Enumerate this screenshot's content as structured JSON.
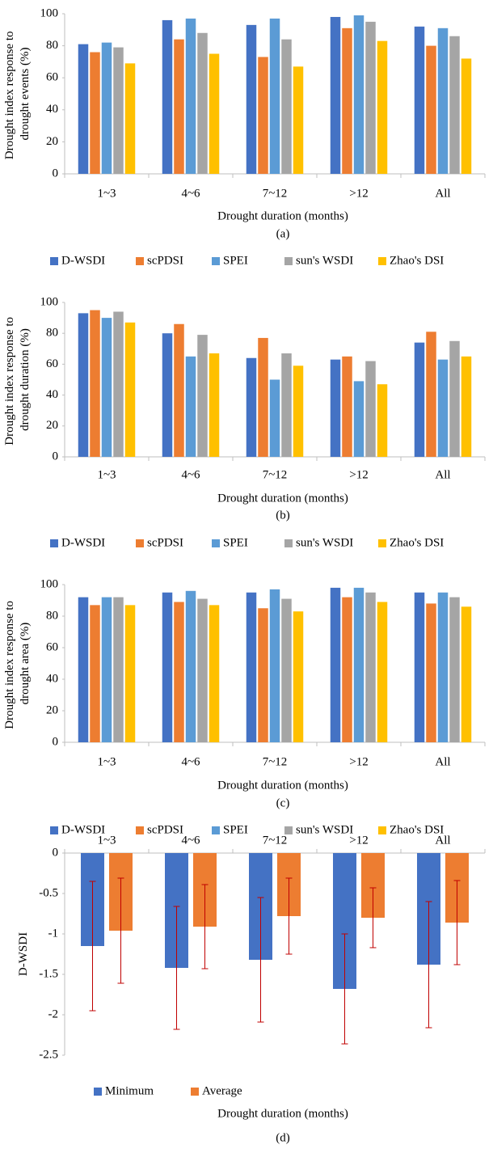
{
  "chart_data": [
    {
      "type": "bar",
      "ylabel": "Drought index response to drought events (%)",
      "xlabel": "Drought duration (months)",
      "caption": "(a)",
      "categories": [
        "1~3",
        "4~6",
        "7~12",
        ">12",
        "All"
      ],
      "series": [
        {
          "name": "D-WSDI",
          "color": "#4472c4",
          "values": [
            81,
            96,
            93,
            98,
            92
          ]
        },
        {
          "name": "scPDSI",
          "color": "#ed7d31",
          "values": [
            76,
            84,
            73,
            91,
            80
          ]
        },
        {
          "name": "SPEI",
          "color": "#5b9bd5",
          "values": [
            82,
            97,
            97,
            99,
            91
          ]
        },
        {
          "name": "sun's WSDI",
          "color": "#a5a5a5",
          "values": [
            79,
            88,
            84,
            95,
            86
          ]
        },
        {
          "name": "Zhao's DSI",
          "color": "#ffc000",
          "values": [
            69,
            75,
            67,
            83,
            72
          ]
        }
      ],
      "ylim": [
        0,
        100
      ],
      "yticks": [
        0,
        20,
        40,
        60,
        80,
        100
      ],
      "grid": false,
      "legend": "bottom"
    },
    {
      "type": "bar",
      "ylabel": "Drought index response to drought duration (%)",
      "xlabel": "Drought duration (months)",
      "caption": "(b)",
      "categories": [
        "1~3",
        "4~6",
        "7~12",
        ">12",
        "All"
      ],
      "series": [
        {
          "name": "D-WSDI",
          "color": "#4472c4",
          "values": [
            93,
            80,
            64,
            63,
            74
          ]
        },
        {
          "name": "scPDSI",
          "color": "#ed7d31",
          "values": [
            95,
            86,
            77,
            65,
            81
          ]
        },
        {
          "name": "SPEI",
          "color": "#5b9bd5",
          "values": [
            90,
            65,
            50,
            49,
            63
          ]
        },
        {
          "name": "sun's WSDI",
          "color": "#a5a5a5",
          "values": [
            94,
            79,
            67,
            62,
            75
          ]
        },
        {
          "name": "Zhao's DSI",
          "color": "#ffc000",
          "values": [
            87,
            67,
            59,
            47,
            65
          ]
        }
      ],
      "ylim": [
        0,
        100
      ],
      "yticks": [
        0,
        20,
        40,
        60,
        80,
        100
      ],
      "grid": false,
      "legend": "bottom"
    },
    {
      "type": "bar",
      "ylabel": "Drought index response to drought area (%)",
      "xlabel": "Drought duration (months)",
      "caption": "(c)",
      "categories": [
        "1~3",
        "4~6",
        "7~12",
        ">12",
        "All"
      ],
      "series": [
        {
          "name": "D-WSDI",
          "color": "#4472c4",
          "values": [
            92,
            95,
            95,
            98,
            95
          ]
        },
        {
          "name": "scPDSI",
          "color": "#ed7d31",
          "values": [
            87,
            89,
            85,
            92,
            88
          ]
        },
        {
          "name": "SPEI",
          "color": "#5b9bd5",
          "values": [
            92,
            96,
            97,
            98,
            95
          ]
        },
        {
          "name": "sun's WSDI",
          "color": "#a5a5a5",
          "values": [
            92,
            91,
            91,
            95,
            92
          ]
        },
        {
          "name": "Zhao's DSI",
          "color": "#ffc000",
          "values": [
            87,
            87,
            83,
            89,
            86
          ]
        }
      ],
      "ylim": [
        0,
        100
      ],
      "yticks": [
        0,
        20,
        40,
        60,
        80,
        100
      ],
      "grid": false,
      "legend": "bottom"
    },
    {
      "type": "bar",
      "ylabel": "D-WSDI",
      "xlabel": "Drought duration (months)",
      "caption": "(d)",
      "categories": [
        "1~3",
        "4~6",
        "7~12",
        ">12",
        "All"
      ],
      "series": [
        {
          "name": "Minimum",
          "color": "#4472c4",
          "values": [
            -1.15,
            -1.42,
            -1.32,
            -1.68,
            -1.38
          ],
          "errors": [
            0.8,
            0.76,
            0.77,
            0.68,
            0.78
          ]
        },
        {
          "name": "Average",
          "color": "#ed7d31",
          "values": [
            -0.96,
            -0.91,
            -0.78,
            -0.8,
            -0.86
          ],
          "errors": [
            0.65,
            0.52,
            0.47,
            0.37,
            0.52
          ]
        }
      ],
      "error_color": "#c00000",
      "ylim": [
        -2.5,
        0
      ],
      "yticks": [
        -2.5,
        -2,
        -1.5,
        -1,
        -0.5,
        0
      ],
      "grid": false,
      "legend": "lower left"
    }
  ]
}
